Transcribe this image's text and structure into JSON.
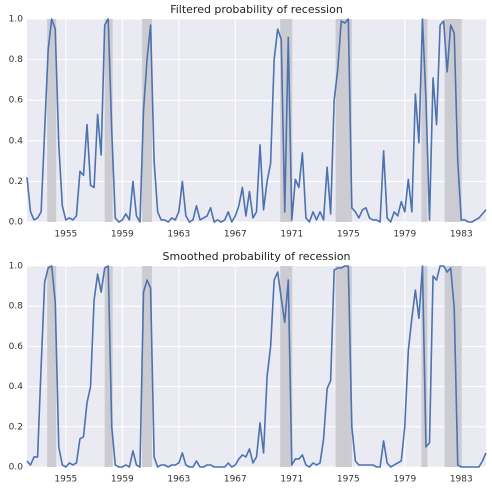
{
  "chart_data": [
    {
      "type": "line",
      "title": "Filtered probability of recession",
      "x": [
        1952.25,
        1952.5,
        1952.75,
        1953,
        1953.25,
        1953.5,
        1953.75,
        1954,
        1954.25,
        1954.5,
        1954.75,
        1955,
        1955.25,
        1955.5,
        1955.75,
        1956,
        1956.25,
        1956.5,
        1956.75,
        1957,
        1957.25,
        1957.5,
        1957.75,
        1958,
        1958.25,
        1958.5,
        1958.75,
        1959,
        1959.25,
        1959.5,
        1959.75,
        1960,
        1960.25,
        1960.5,
        1960.75,
        1961,
        1961.25,
        1961.5,
        1961.75,
        1962,
        1962.25,
        1962.5,
        1962.75,
        1963,
        1963.25,
        1963.5,
        1963.75,
        1964,
        1964.25,
        1964.5,
        1964.75,
        1965,
        1965.25,
        1965.5,
        1965.75,
        1966,
        1966.25,
        1966.5,
        1966.75,
        1967,
        1967.25,
        1967.5,
        1967.75,
        1968,
        1968.25,
        1968.5,
        1968.75,
        1969,
        1969.25,
        1969.5,
        1969.75,
        1970,
        1970.25,
        1970.5,
        1970.75,
        1971,
        1971.25,
        1971.5,
        1971.75,
        1972,
        1972.25,
        1972.5,
        1972.75,
        1973,
        1973.25,
        1973.5,
        1973.75,
        1974,
        1974.25,
        1974.5,
        1974.75,
        1975,
        1975.25,
        1975.5,
        1975.75,
        1976,
        1976.25,
        1976.5,
        1976.75,
        1977,
        1977.25,
        1977.5,
        1977.75,
        1978,
        1978.25,
        1978.5,
        1978.75,
        1979,
        1979.25,
        1979.5,
        1979.75,
        1980,
        1980.25,
        1980.5,
        1980.75,
        1981,
        1981.25,
        1981.5,
        1981.75,
        1982,
        1982.25,
        1982.5,
        1982.75,
        1983,
        1983.25,
        1983.5,
        1983.75,
        1984,
        1984.25,
        1984.5,
        1984.75
      ],
      "series": [
        {
          "color": "#4c72b0",
          "values": [
            0.22,
            0.05,
            0.01,
            0.02,
            0.05,
            0.45,
            0.85,
            1.0,
            0.95,
            0.38,
            0.08,
            0.01,
            0.02,
            0.01,
            0.03,
            0.25,
            0.23,
            0.48,
            0.18,
            0.17,
            0.53,
            0.33,
            0.97,
            1.0,
            0.45,
            0.02,
            0.0,
            0.01,
            0.04,
            0.01,
            0.2,
            0.03,
            0.0,
            0.55,
            0.8,
            0.97,
            0.3,
            0.05,
            0.01,
            0.01,
            0.0,
            0.02,
            0.01,
            0.05,
            0.2,
            0.03,
            0.0,
            0.01,
            0.08,
            0.01,
            0.02,
            0.03,
            0.07,
            0.0,
            0.01,
            0.0,
            0.01,
            0.05,
            0.0,
            0.03,
            0.08,
            0.17,
            0.03,
            0.15,
            0.02,
            0.05,
            0.38,
            0.06,
            0.2,
            0.29,
            0.8,
            0.95,
            0.9,
            0.05,
            0.91,
            0.01,
            0.21,
            0.17,
            0.34,
            0.02,
            0.0,
            0.05,
            0.01,
            0.05,
            0.01,
            0.27,
            0.04,
            0.6,
            0.75,
            0.99,
            0.98,
            1.0,
            0.07,
            0.05,
            0.02,
            0.06,
            0.07,
            0.02,
            0.01,
            0.01,
            0.0,
            0.35,
            0.02,
            0.0,
            0.05,
            0.03,
            0.1,
            0.05,
            0.21,
            0.05,
            0.63,
            0.39,
            1.0,
            0.6,
            0.01,
            0.71,
            0.48,
            0.97,
            0.99,
            0.74,
            0.97,
            0.93,
            0.3,
            0.01,
            0.01,
            0.0,
            0.0,
            0.01,
            0.02,
            0.04,
            0.06
          ]
        }
      ],
      "recessions": [
        [
          1953.68,
          1954.32
        ],
        [
          1957.75,
          1958.32
        ],
        [
          1960.4,
          1961.1
        ],
        [
          1970.18,
          1971.04
        ],
        [
          1974.1,
          1975.25
        ],
        [
          1980.18,
          1980.6
        ],
        [
          1981.82,
          1983.04
        ]
      ],
      "band_color": "#c8c8cd",
      "xlim": [
        1952.25,
        1984.75
      ],
      "xticks": [
        1955,
        1959,
        1963,
        1967,
        1971,
        1975,
        1979,
        1983
      ],
      "ylim": [
        0,
        1
      ],
      "yticks": [
        {
          "value": 0,
          "label": "0.0"
        },
        0.2,
        0.4,
        0.6,
        0.8,
        {
          "value": 1,
          "label": "1.0"
        }
      ],
      "grid": true
    },
    {
      "type": "line",
      "title": "Smoothed probability of recession",
      "x": [
        1952.25,
        1952.5,
        1952.75,
        1953,
        1953.25,
        1953.5,
        1953.75,
        1954,
        1954.25,
        1954.5,
        1954.75,
        1955,
        1955.25,
        1955.5,
        1955.75,
        1956,
        1956.25,
        1956.5,
        1956.75,
        1957,
        1957.25,
        1957.5,
        1957.75,
        1958,
        1958.25,
        1958.5,
        1958.75,
        1959,
        1959.25,
        1959.5,
        1959.75,
        1960,
        1960.25,
        1960.5,
        1960.75,
        1961,
        1961.25,
        1961.5,
        1961.75,
        1962,
        1962.25,
        1962.5,
        1962.75,
        1963,
        1963.25,
        1963.5,
        1963.75,
        1964,
        1964.25,
        1964.5,
        1964.75,
        1965,
        1965.25,
        1965.5,
        1965.75,
        1966,
        1966.25,
        1966.5,
        1966.75,
        1967,
        1967.25,
        1967.5,
        1967.75,
        1968,
        1968.25,
        1968.5,
        1968.75,
        1969,
        1969.25,
        1969.5,
        1969.75,
        1970,
        1970.25,
        1970.5,
        1970.75,
        1971,
        1971.25,
        1971.5,
        1971.75,
        1972,
        1972.25,
        1972.5,
        1972.75,
        1973,
        1973.25,
        1973.5,
        1973.75,
        1974,
        1974.25,
        1974.5,
        1974.75,
        1975,
        1975.25,
        1975.5,
        1975.75,
        1976,
        1976.25,
        1976.5,
        1976.75,
        1977,
        1977.25,
        1977.5,
        1977.75,
        1978,
        1978.25,
        1978.5,
        1978.75,
        1979,
        1979.25,
        1979.5,
        1979.75,
        1980,
        1980.25,
        1980.5,
        1980.75,
        1981,
        1981.25,
        1981.5,
        1981.75,
        1982,
        1982.25,
        1982.5,
        1982.75,
        1983,
        1983.25,
        1983.5,
        1983.75,
        1984,
        1984.25,
        1984.5,
        1984.75
      ],
      "series": [
        {
          "color": "#4c72b0",
          "values": [
            0.03,
            0.01,
            0.05,
            0.05,
            0.5,
            0.92,
            0.99,
            1.0,
            0.82,
            0.1,
            0.01,
            0.0,
            0.02,
            0.01,
            0.02,
            0.14,
            0.15,
            0.32,
            0.4,
            0.83,
            0.96,
            0.87,
            0.99,
            1.0,
            0.2,
            0.01,
            0.0,
            0.0,
            0.01,
            0.0,
            0.08,
            0.01,
            0.0,
            0.87,
            0.93,
            0.89,
            0.05,
            0.0,
            0.01,
            0.01,
            0.0,
            0.01,
            0.01,
            0.02,
            0.07,
            0.01,
            0.0,
            0.0,
            0.03,
            0.0,
            0.0,
            0.01,
            0.01,
            0.0,
            0.0,
            0.0,
            0.0,
            0.02,
            0.0,
            0.01,
            0.04,
            0.06,
            0.05,
            0.09,
            0.02,
            0.05,
            0.22,
            0.07,
            0.45,
            0.6,
            0.93,
            0.97,
            0.84,
            0.72,
            0.93,
            0.01,
            0.04,
            0.04,
            0.06,
            0.01,
            0.0,
            0.02,
            0.01,
            0.02,
            0.14,
            0.39,
            0.43,
            0.98,
            0.99,
            0.99,
            1.0,
            1.0,
            0.2,
            0.03,
            0.01,
            0.01,
            0.01,
            0.01,
            0.01,
            0.0,
            0.0,
            0.13,
            0.02,
            0.0,
            0.01,
            0.02,
            0.03,
            0.2,
            0.58,
            0.74,
            0.88,
            0.74,
            1.0,
            0.1,
            0.12,
            0.95,
            0.93,
            1.0,
            1.0,
            0.97,
            0.99,
            0.79,
            0.01,
            0.0,
            0.0,
            0.0,
            0.0,
            0.0,
            0.0,
            0.03,
            0.07
          ]
        }
      ],
      "recessions": [
        [
          1953.68,
          1954.32
        ],
        [
          1957.75,
          1958.32
        ],
        [
          1960.4,
          1961.1
        ],
        [
          1970.18,
          1971.04
        ],
        [
          1974.1,
          1975.25
        ],
        [
          1980.18,
          1980.6
        ],
        [
          1981.82,
          1983.04
        ]
      ],
      "band_color": "#c8c8cd",
      "xlim": [
        1952.25,
        1984.75
      ],
      "xticks": [
        1955,
        1959,
        1963,
        1967,
        1971,
        1975,
        1979,
        1983
      ],
      "ylim": [
        0,
        1
      ],
      "yticks": [
        {
          "value": 0,
          "label": "0.0"
        },
        0.2,
        0.4,
        0.6,
        0.8,
        {
          "value": 1,
          "label": "1.0"
        }
      ],
      "grid": true
    }
  ]
}
